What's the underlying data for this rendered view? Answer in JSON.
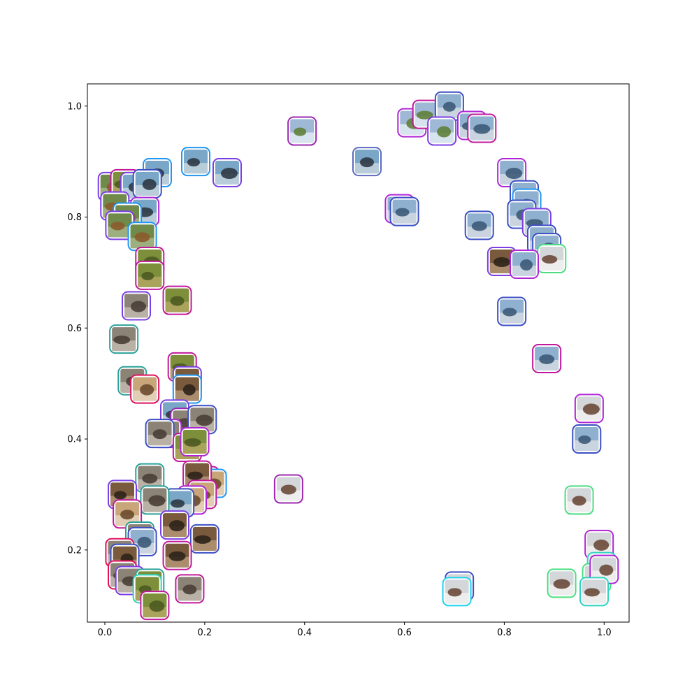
{
  "chart_data": {
    "type": "scatter",
    "title": "",
    "xlabel": "",
    "ylabel": "",
    "xlim": [
      -0.035,
      1.05
    ],
    "ylim": [
      0.07,
      1.04
    ],
    "grid": false,
    "legend": "none",
    "x_ticks": [
      "0.0",
      "0.2",
      "0.4",
      "0.6",
      "0.8",
      "1.0"
    ],
    "x_tick_values": [
      0.0,
      0.2,
      0.4,
      0.6,
      0.8,
      1.0
    ],
    "y_ticks": [
      "0.2",
      "0.4",
      "0.6",
      "0.8",
      "1.0"
    ],
    "y_tick_values": [
      0.2,
      0.4,
      0.6,
      0.8,
      1.0
    ],
    "marker": "thumbnail image with rounded colored frame",
    "points": [
      {
        "x": 0.395,
        "y": 0.955,
        "frame": "#9c27b0",
        "img": "airplane"
      },
      {
        "x": 0.525,
        "y": 0.9,
        "frame": "#5c6bc0",
        "img": "bird"
      },
      {
        "x": 0.615,
        "y": 0.97,
        "frame": "#b026d6",
        "img": "airplane"
      },
      {
        "x": 0.645,
        "y": 0.985,
        "frame": "#c2189b",
        "img": "airplane"
      },
      {
        "x": 0.69,
        "y": 1.0,
        "frame": "#3b4fc4",
        "img": "ship"
      },
      {
        "x": 0.675,
        "y": 0.955,
        "frame": "#7b3fe4",
        "img": "airplane"
      },
      {
        "x": 0.735,
        "y": 0.965,
        "frame": "#b026d6",
        "img": "ship"
      },
      {
        "x": 0.755,
        "y": 0.96,
        "frame": "#c2189b",
        "img": "ship"
      },
      {
        "x": 0.59,
        "y": 0.815,
        "frame": "#b026d6",
        "img": "ship"
      },
      {
        "x": 0.6,
        "y": 0.81,
        "frame": "#3b4fc4",
        "img": "ship"
      },
      {
        "x": 0.75,
        "y": 0.785,
        "frame": "#3b4fc4",
        "img": "ship"
      },
      {
        "x": 0.815,
        "y": 0.88,
        "frame": "#b026d6",
        "img": "ship"
      },
      {
        "x": 0.84,
        "y": 0.84,
        "frame": "#3b4fc4",
        "img": "ship"
      },
      {
        "x": 0.845,
        "y": 0.825,
        "frame": "#2196f3",
        "img": "ship"
      },
      {
        "x": 0.835,
        "y": 0.805,
        "frame": "#3b4fc4",
        "img": "ship"
      },
      {
        "x": 0.865,
        "y": 0.79,
        "frame": "#7b3fe4",
        "img": "ship"
      },
      {
        "x": 0.875,
        "y": 0.76,
        "frame": "#3b4fc4",
        "img": "ship"
      },
      {
        "x": 0.885,
        "y": 0.745,
        "frame": "#3b4fc4",
        "img": "ship"
      },
      {
        "x": 0.895,
        "y": 0.725,
        "frame": "#4ade80",
        "img": "truck"
      },
      {
        "x": 0.795,
        "y": 0.72,
        "frame": "#7b3fe4",
        "img": "horse"
      },
      {
        "x": 0.84,
        "y": 0.715,
        "frame": "#b026d6",
        "img": "ship"
      },
      {
        "x": 0.815,
        "y": 0.63,
        "frame": "#3b4fc4",
        "img": "ship"
      },
      {
        "x": 0.885,
        "y": 0.545,
        "frame": "#c2189b",
        "img": "ship"
      },
      {
        "x": 0.97,
        "y": 0.455,
        "frame": "#b026d6",
        "img": "truck"
      },
      {
        "x": 0.965,
        "y": 0.4,
        "frame": "#3b4fc4",
        "img": "ship"
      },
      {
        "x": 0.95,
        "y": 0.29,
        "frame": "#4ade80",
        "img": "truck"
      },
      {
        "x": 0.99,
        "y": 0.21,
        "frame": "#b026d6",
        "img": "truck"
      },
      {
        "x": 0.995,
        "y": 0.17,
        "frame": "#2dd4bf",
        "img": "truck"
      },
      {
        "x": 0.985,
        "y": 0.15,
        "frame": "#4ade80",
        "img": "truck"
      },
      {
        "x": 1.0,
        "y": 0.165,
        "frame": "#b026d6",
        "img": "truck"
      },
      {
        "x": 0.98,
        "y": 0.125,
        "frame": "#2dd4bf",
        "img": "truck"
      },
      {
        "x": 0.915,
        "y": 0.14,
        "frame": "#4ade80",
        "img": "truck"
      },
      {
        "x": 0.71,
        "y": 0.135,
        "frame": "#3b4fc4",
        "img": "truck"
      },
      {
        "x": 0.705,
        "y": 0.125,
        "frame": "#22d3ee",
        "img": "truck"
      },
      {
        "x": 0.368,
        "y": 0.31,
        "frame": "#9c27b0",
        "img": "truck"
      },
      {
        "x": 0.245,
        "y": 0.88,
        "frame": "#7b3fe4",
        "img": "bird"
      },
      {
        "x": 0.182,
        "y": 0.9,
        "frame": "#2196f3",
        "img": "bird"
      },
      {
        "x": 0.105,
        "y": 0.88,
        "frame": "#2196f3",
        "img": "bird"
      },
      {
        "x": 0.015,
        "y": 0.855,
        "frame": "#7b3fe4",
        "img": "deer"
      },
      {
        "x": 0.04,
        "y": 0.86,
        "frame": "#c2189b",
        "img": "frog"
      },
      {
        "x": 0.06,
        "y": 0.855,
        "frame": "#7b3fe4",
        "img": "bird"
      },
      {
        "x": 0.085,
        "y": 0.86,
        "frame": "#3b4fc4",
        "img": "bird"
      },
      {
        "x": 0.02,
        "y": 0.82,
        "frame": "#7b3fe4",
        "img": "deer"
      },
      {
        "x": 0.08,
        "y": 0.81,
        "frame": "#b026d6",
        "img": "bird"
      },
      {
        "x": 0.045,
        "y": 0.8,
        "frame": "#2196f3",
        "img": "deer"
      },
      {
        "x": 0.03,
        "y": 0.785,
        "frame": "#7b3fe4",
        "img": "deer"
      },
      {
        "x": 0.075,
        "y": 0.765,
        "frame": "#2196f3",
        "img": "deer"
      },
      {
        "x": 0.09,
        "y": 0.72,
        "frame": "#c2189b",
        "img": "frog"
      },
      {
        "x": 0.09,
        "y": 0.695,
        "frame": "#c2189b",
        "img": "frog"
      },
      {
        "x": 0.145,
        "y": 0.65,
        "frame": "#c2189b",
        "img": "frog"
      },
      {
        "x": 0.063,
        "y": 0.64,
        "frame": "#7b3fe4",
        "img": "cat"
      },
      {
        "x": 0.038,
        "y": 0.58,
        "frame": "#2aa198",
        "img": "cat"
      },
      {
        "x": 0.055,
        "y": 0.505,
        "frame": "#2aa198",
        "img": "cat"
      },
      {
        "x": 0.08,
        "y": 0.49,
        "frame": "#e0115f",
        "img": "dog"
      },
      {
        "x": 0.155,
        "y": 0.53,
        "frame": "#c2189b",
        "img": "frog"
      },
      {
        "x": 0.165,
        "y": 0.505,
        "frame": "#7b3fe4",
        "img": "horse"
      },
      {
        "x": 0.165,
        "y": 0.49,
        "frame": "#2196f3",
        "img": "horse"
      },
      {
        "x": 0.14,
        "y": 0.445,
        "frame": "#7b3fe4",
        "img": "bird"
      },
      {
        "x": 0.16,
        "y": 0.43,
        "frame": "#9c27b0",
        "img": "cat"
      },
      {
        "x": 0.195,
        "y": 0.435,
        "frame": "#3b4fc4",
        "img": "cat"
      },
      {
        "x": 0.125,
        "y": 0.41,
        "frame": "#b026d6",
        "img": "cat"
      },
      {
        "x": 0.11,
        "y": 0.41,
        "frame": "#3b4fc4",
        "img": "cat"
      },
      {
        "x": 0.165,
        "y": 0.385,
        "frame": "#c2189b",
        "img": "frog"
      },
      {
        "x": 0.18,
        "y": 0.395,
        "frame": "#b026d6",
        "img": "frog"
      },
      {
        "x": 0.2,
        "y": 0.325,
        "frame": "#c2189b",
        "img": "dog"
      },
      {
        "x": 0.215,
        "y": 0.32,
        "frame": "#2196f3",
        "img": "dog"
      },
      {
        "x": 0.185,
        "y": 0.335,
        "frame": "#c2189b",
        "img": "horse"
      },
      {
        "x": 0.195,
        "y": 0.3,
        "frame": "#c2189b",
        "img": "dog"
      },
      {
        "x": 0.175,
        "y": 0.29,
        "frame": "#b026d6",
        "img": "dog"
      },
      {
        "x": 0.15,
        "y": 0.285,
        "frame": "#3b4fc4",
        "img": "bird"
      },
      {
        "x": 0.09,
        "y": 0.33,
        "frame": "#2aa198",
        "img": "cat"
      },
      {
        "x": 0.1,
        "y": 0.29,
        "frame": "#2aa198",
        "img": "cat"
      },
      {
        "x": 0.035,
        "y": 0.3,
        "frame": "#7b3fe4",
        "img": "horse"
      },
      {
        "x": 0.045,
        "y": 0.265,
        "frame": "#c2189b",
        "img": "dog"
      },
      {
        "x": 0.14,
        "y": 0.245,
        "frame": "#7b3fe4",
        "img": "horse"
      },
      {
        "x": 0.2,
        "y": 0.22,
        "frame": "#3b4fc4",
        "img": "horse"
      },
      {
        "x": 0.07,
        "y": 0.225,
        "frame": "#2aa198",
        "img": "cat"
      },
      {
        "x": 0.075,
        "y": 0.215,
        "frame": "#3b4fc4",
        "img": "ship"
      },
      {
        "x": 0.03,
        "y": 0.195,
        "frame": "#e0115f",
        "img": "cat"
      },
      {
        "x": 0.145,
        "y": 0.19,
        "frame": "#c2189b",
        "img": "horse"
      },
      {
        "x": 0.04,
        "y": 0.185,
        "frame": "#3b4fc4",
        "img": "horse"
      },
      {
        "x": 0.035,
        "y": 0.155,
        "frame": "#e0115f",
        "img": "cat"
      },
      {
        "x": 0.05,
        "y": 0.145,
        "frame": "#7b3fe4",
        "img": "cat"
      },
      {
        "x": 0.09,
        "y": 0.14,
        "frame": "#2aa198",
        "img": "frog"
      },
      {
        "x": 0.085,
        "y": 0.13,
        "frame": "#2dd4bf",
        "img": "frog"
      },
      {
        "x": 0.17,
        "y": 0.13,
        "frame": "#c2189b",
        "img": "cat"
      },
      {
        "x": 0.1,
        "y": 0.1,
        "frame": "#c2189b",
        "img": "frog"
      }
    ]
  }
}
